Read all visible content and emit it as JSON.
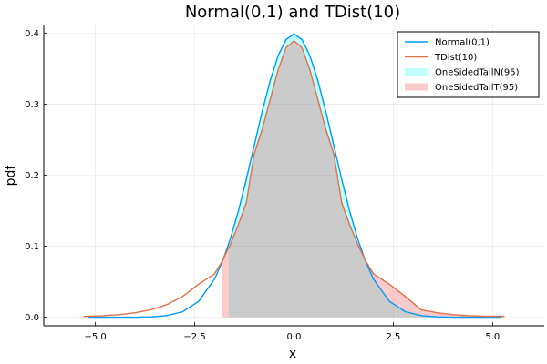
{
  "chart_data": {
    "type": "line",
    "title": "Normal(0,1) and TDist(10)",
    "xlabel": "x",
    "ylabel": "pdf",
    "xlim": [
      -6.3,
      6.3
    ],
    "ylim": [
      -0.012,
      0.412
    ],
    "xticks": [
      -5.0,
      -2.5,
      0.0,
      2.5,
      5.0
    ],
    "xtick_labels": [
      "−5.0",
      "−2.5",
      "0.0",
      "2.5",
      "5.0"
    ],
    "yticks": [
      0.0,
      0.1,
      0.2,
      0.3,
      0.4
    ],
    "ytick_labels": [
      "0.0",
      "0.1",
      "0.2",
      "0.3",
      "0.4"
    ],
    "grid": true,
    "legend_position": "top-right",
    "series": [
      {
        "name": "Normal(0,1)",
        "kind": "line",
        "color": "#009AFA",
        "x": [
          -5.2,
          -4.8,
          -4.4,
          -4.0,
          -3.6,
          -3.2,
          -2.8,
          -2.4,
          -2.0,
          -1.8,
          -1.6,
          -1.4,
          -1.2,
          -1.0,
          -0.8,
          -0.6,
          -0.4,
          -0.2,
          0.0,
          0.2,
          0.4,
          0.6,
          0.8,
          1.0,
          1.2,
          1.4,
          1.6,
          1.8,
          2.0,
          2.4,
          2.8,
          3.2,
          3.6,
          4.0,
          4.4,
          4.8,
          5.2
        ],
        "y": [
          0.0,
          0.0,
          0.0,
          0.0001,
          0.0006,
          0.0024,
          0.0079,
          0.0224,
          0.054,
          0.079,
          0.1109,
          0.1497,
          0.1942,
          0.242,
          0.2897,
          0.3332,
          0.3683,
          0.391,
          0.3989,
          0.391,
          0.3683,
          0.3332,
          0.2897,
          0.242,
          0.1942,
          0.1497,
          0.1109,
          0.079,
          0.054,
          0.0224,
          0.0079,
          0.0024,
          0.0006,
          0.0001,
          0.0,
          0.0,
          0.0
        ]
      },
      {
        "name": "TDist(10)",
        "kind": "line",
        "color": "#E26F46",
        "x": [
          -5.3,
          -4.8,
          -4.4,
          -4.0,
          -3.6,
          -3.2,
          -2.8,
          -2.4,
          -2.0,
          -1.8,
          -1.6,
          -1.4,
          -1.2,
          -1.0,
          -0.8,
          -0.6,
          -0.4,
          -0.2,
          0.0,
          0.2,
          0.4,
          0.6,
          0.8,
          1.0,
          1.2,
          1.4,
          1.6,
          1.8,
          2.0,
          2.4,
          2.8,
          3.2,
          3.6,
          4.0,
          4.4,
          4.8,
          5.3
        ],
        "y": [
          0.0012,
          0.0022,
          0.0036,
          0.0063,
          0.0106,
          0.0178,
          0.0294,
          0.0465,
          0.0611,
          0.0799,
          0.1032,
          0.1305,
          0.1612,
          0.2304,
          0.2644,
          0.3066,
          0.3483,
          0.3794,
          0.3891,
          0.3794,
          0.3483,
          0.3066,
          0.2644,
          0.2304,
          0.1612,
          0.1305,
          0.1032,
          0.0799,
          0.0611,
          0.0465,
          0.0294,
          0.0106,
          0.0063,
          0.0036,
          0.0022,
          0.0015,
          0.0012
        ]
      },
      {
        "name": "OneSidedTailN(95)",
        "kind": "area",
        "color": "#00FFFF",
        "opacity": 0.25,
        "x_from": -1.645
      },
      {
        "name": "OneSidedTailT(95)",
        "kind": "area",
        "color": "#F0312E",
        "opacity": 0.25,
        "x_from": -1.812
      }
    ]
  }
}
